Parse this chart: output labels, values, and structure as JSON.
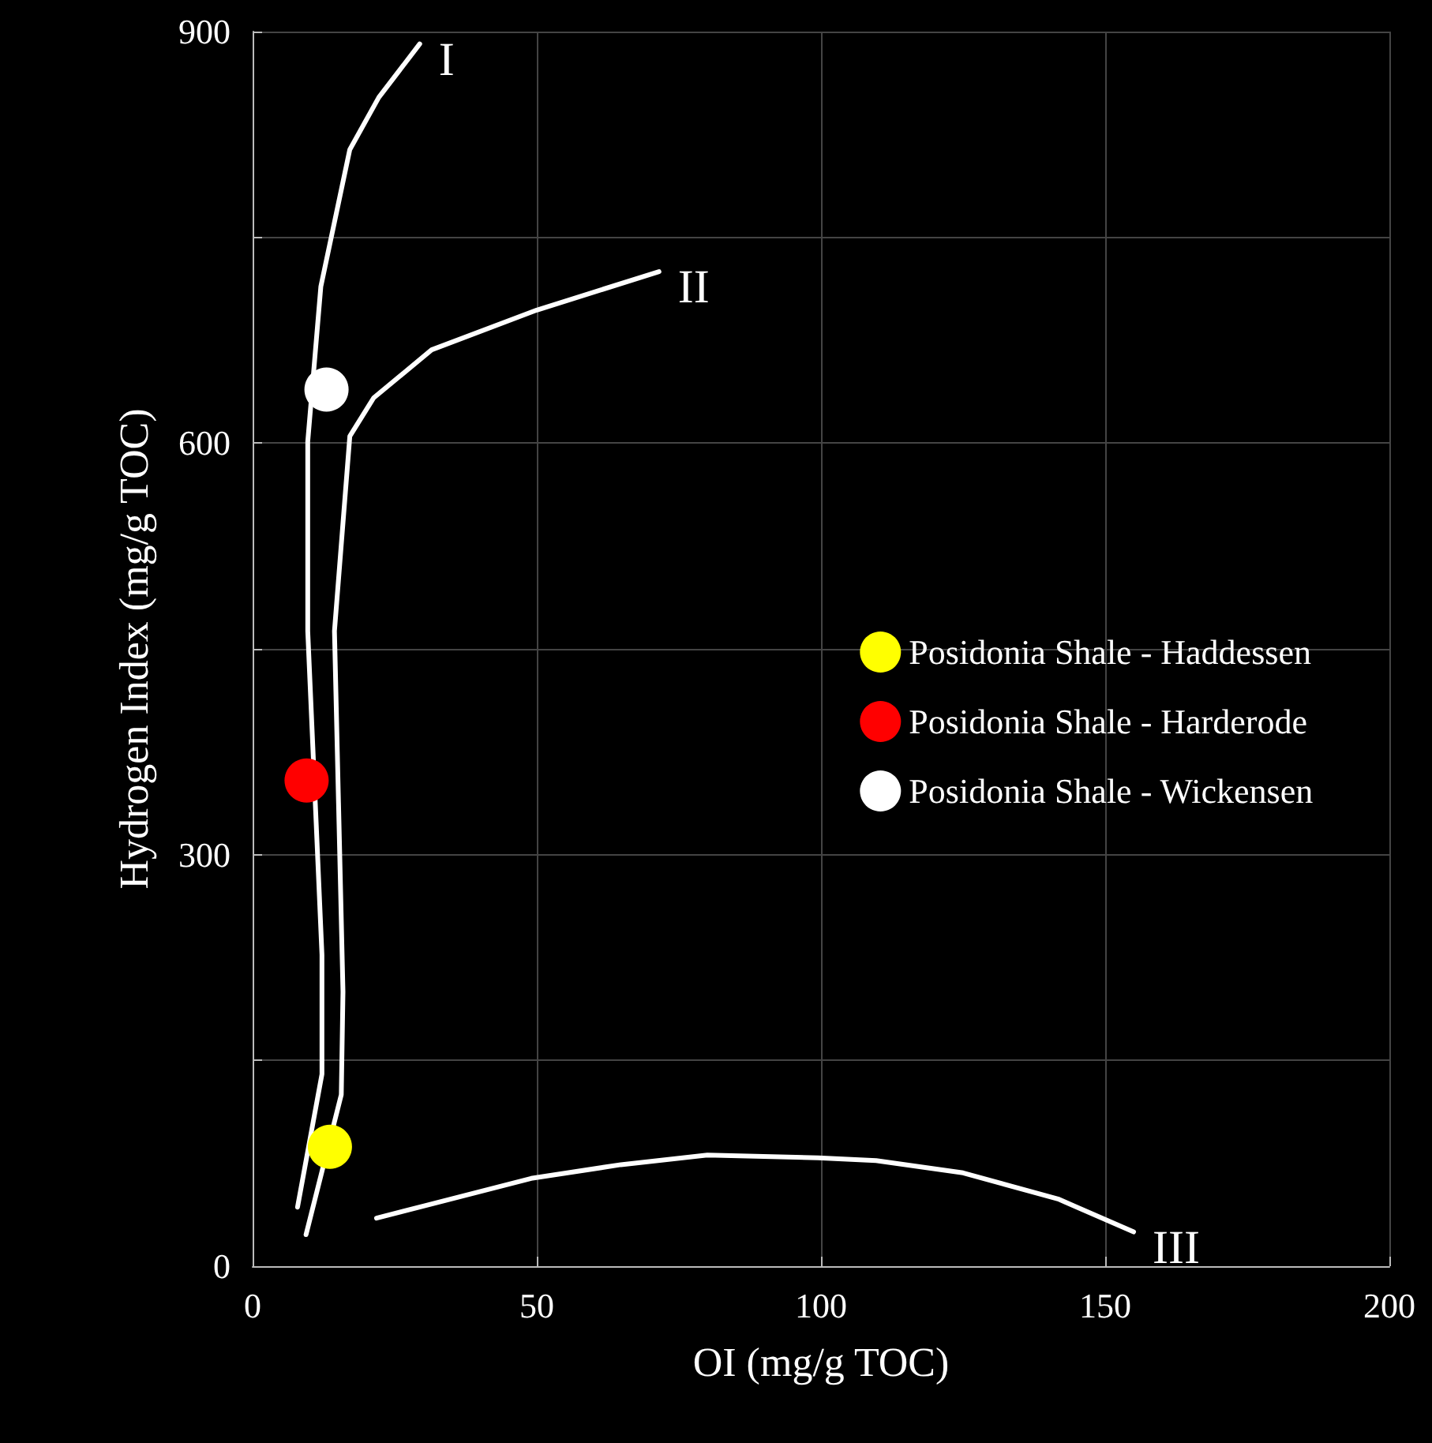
{
  "chart_data": {
    "type": "scatter",
    "xlabel": "OI (mg/g TOC)",
    "ylabel": "Hydrogen Index (mg/g TOC)",
    "xlim": [
      0,
      200
    ],
    "xticks": [
      0,
      50,
      100,
      150,
      200
    ],
    "ylim": [
      0,
      900
    ],
    "yticks": [
      0,
      {
        "value": 150,
        "label": null
      },
      300,
      {
        "value": 450,
        "label": null
      },
      600,
      {
        "value": 750,
        "label": null
      },
      900
    ],
    "grid": true,
    "legend": "right",
    "marker": "circle",
    "series": [
      {
        "type": "line",
        "name": "I",
        "color": "#ffffff",
        "marker": "none",
        "line_style": "solid",
        "x": [
          7.9,
          12.2,
          12.2,
          9.7,
          9.7,
          12.0,
          17.1,
          22.2,
          29.4
        ],
        "values": [
          43,
          140,
          227,
          463,
          601,
          714,
          814,
          852,
          891
        ]
      },
      {
        "type": "line",
        "name": "II",
        "color": "#ffffff",
        "marker": "none",
        "line_style": "solid",
        "x": [
          9.4,
          15.6,
          15.9,
          14.4,
          17.1,
          21.3,
          31.5,
          50,
          71.5
        ],
        "values": [
          23,
          125,
          200,
          463,
          605,
          633,
          668,
          697,
          725
        ]
      },
      {
        "type": "line",
        "name": "III",
        "color": "#ffffff",
        "marker": "none",
        "line_style": "solid",
        "x": [
          21.8,
          49,
          64.8,
          80,
          99.5,
          109.7,
          125,
          141.7,
          155
        ],
        "values": [
          35,
          64,
          74,
          81,
          79,
          77,
          68,
          49,
          25
        ]
      },
      {
        "name": "Posidonia Shale - Haddessen",
        "color": "#ffff00",
        "x": [
          13.6
        ],
        "values": [
          87
        ]
      },
      {
        "name": "Posidonia Shale - Harderode",
        "color": "#ff0000",
        "x": [
          9.5
        ],
        "values": [
          354
        ]
      },
      {
        "name": "Posidonia Shale - Wickensen",
        "color": "#ffffff",
        "x": [
          13.0
        ],
        "values": [
          639
        ]
      }
    ]
  }
}
